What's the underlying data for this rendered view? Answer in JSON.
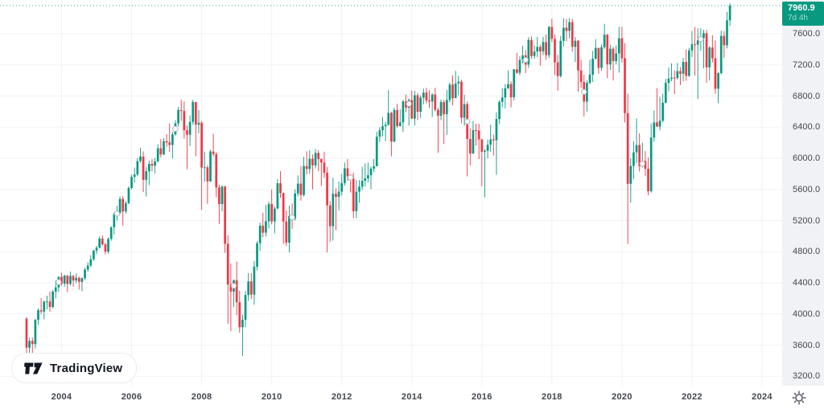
{
  "badge": {
    "last_price_label": "7960.9",
    "countdown": "7d 4h"
  },
  "logo": {
    "text": "TradingView"
  },
  "colors": {
    "up": "#089981",
    "down": "#F23645",
    "badge_bg": "#089981",
    "grid": "#EFF2F6",
    "axis_text": "#42464D",
    "scale_bg": "#F0F2F5",
    "marker_stroke": "#B2B5BE",
    "price_line": "#089981"
  },
  "chart_data": {
    "type": "candlestick",
    "interval": "monthly",
    "start_month": "2003-01",
    "last_price": 7960.9,
    "grid": true,
    "y_axis": {
      "side": "right",
      "tick_values": [
        7600,
        7200,
        6800,
        6400,
        6000,
        5600,
        5200,
        4800,
        4400,
        4000,
        3600,
        3200
      ],
      "tick_labels": [
        "7600.0",
        "7200.0",
        "6800.0",
        "6400.0",
        "6000.0",
        "5600.0",
        "5200.0",
        "4800.0",
        "4400.0",
        "4000.0",
        "3600.0",
        "3200.0"
      ],
      "range": [
        3100,
        8030
      ]
    },
    "x_axis": {
      "tick_years": [
        2004,
        2006,
        2008,
        2010,
        2012,
        2014,
        2016,
        2018,
        2020,
        2022,
        2024
      ],
      "tick_labels": [
        "2004",
        "2006",
        "2008",
        "2010",
        "2012",
        "2014",
        "2016",
        "2018",
        "2020",
        "2022",
        "2024"
      ]
    },
    "event_marker_months": [
      11,
      31,
      51,
      71,
      91,
      111,
      131,
      151,
      171,
      191,
      211,
      231
    ],
    "candles": [
      [
        3940,
        3960,
        3480,
        3567
      ],
      [
        3567,
        3695,
        3436,
        3655
      ],
      [
        3655,
        3698,
        3277,
        3613
      ],
      [
        3613,
        3935,
        3558,
        3926
      ],
      [
        3926,
        4075,
        3860,
        4048
      ],
      [
        4048,
        4205,
        3995,
        4031
      ],
      [
        4031,
        4175,
        3932,
        4157
      ],
      [
        4157,
        4235,
        4060,
        4161
      ],
      [
        4161,
        4290,
        4030,
        4091
      ],
      [
        4091,
        4310,
        4072,
        4287
      ],
      [
        4287,
        4430,
        4200,
        4342
      ],
      [
        4342,
        4480,
        4283,
        4477
      ],
      [
        4477,
        4530,
        4360,
        4390
      ],
      [
        4390,
        4505,
        4350,
        4492
      ],
      [
        4492,
        4500,
        4280,
        4386
      ],
      [
        4386,
        4545,
        4365,
        4489
      ],
      [
        4489,
        4500,
        4350,
        4430
      ],
      [
        4430,
        4520,
        4395,
        4464
      ],
      [
        4464,
        4480,
        4315,
        4413
      ],
      [
        4413,
        4475,
        4290,
        4459
      ],
      [
        4459,
        4595,
        4435,
        4571
      ],
      [
        4571,
        4665,
        4540,
        4624
      ],
      [
        4624,
        4755,
        4600,
        4703
      ],
      [
        4703,
        4825,
        4680,
        4814
      ],
      [
        4814,
        4875,
        4770,
        4852
      ],
      [
        4852,
        5000,
        4840,
        4969
      ],
      [
        4969,
        5010,
        4880,
        4894
      ],
      [
        4894,
        4915,
        4765,
        4801
      ],
      [
        4801,
        4985,
        4775,
        4964
      ],
      [
        4964,
        5130,
        4940,
        5113
      ],
      [
        5113,
        5305,
        5020,
        5282
      ],
      [
        5282,
        5390,
        5200,
        5297
      ],
      [
        5297,
        5510,
        5285,
        5478
      ],
      [
        5478,
        5515,
        5135,
        5317
      ],
      [
        5317,
        5450,
        5290,
        5423
      ],
      [
        5423,
        5640,
        5410,
        5619
      ],
      [
        5619,
        5790,
        5600,
        5760
      ],
      [
        5760,
        5880,
        5690,
        5792
      ],
      [
        5792,
        6000,
        5770,
        5965
      ],
      [
        5965,
        6135,
        5940,
        6023
      ],
      [
        6023,
        6090,
        5565,
        5723
      ],
      [
        5723,
        5890,
        5510,
        5833
      ],
      [
        5833,
        5970,
        5655,
        5928
      ],
      [
        5928,
        5990,
        5830,
        5906
      ],
      [
        5906,
        6005,
        5805,
        5961
      ],
      [
        5961,
        6180,
        5945,
        6129
      ],
      [
        6129,
        6245,
        6010,
        6049
      ],
      [
        6049,
        6260,
        6040,
        6221
      ],
      [
        6221,
        6310,
        6150,
        6204
      ],
      [
        6204,
        6450,
        6085,
        6171
      ],
      [
        6171,
        6340,
        6000,
        6308
      ],
      [
        6308,
        6490,
        6290,
        6449
      ],
      [
        6449,
        6660,
        6410,
        6621
      ],
      [
        6621,
        6754,
        6480,
        6608
      ],
      [
        6608,
        6730,
        6250,
        6360
      ],
      [
        6360,
        6420,
        5860,
        6303
      ],
      [
        6303,
        6550,
        6160,
        6467
      ],
      [
        6467,
        6751,
        6430,
        6722
      ],
      [
        6722,
        6725,
        6025,
        6432
      ],
      [
        6432,
        6620,
        6320,
        6457
      ],
      [
        6457,
        6480,
        5338,
        5880
      ],
      [
        5880,
        6085,
        5700,
        5884
      ],
      [
        5884,
        5910,
        5415,
        5702
      ],
      [
        5702,
        6110,
        5700,
        6087
      ],
      [
        6087,
        6315,
        6025,
        6054
      ],
      [
        6054,
        6080,
        5500,
        5626
      ],
      [
        5626,
        5660,
        5155,
        5412
      ],
      [
        5412,
        5650,
        5320,
        5637
      ],
      [
        5637,
        5645,
        4785,
        4902
      ],
      [
        4902,
        5010,
        3874,
        4377
      ],
      [
        4377,
        4650,
        3781,
        4288
      ],
      [
        4288,
        4445,
        4090,
        4434
      ],
      [
        4434,
        4675,
        3985,
        4150
      ],
      [
        4150,
        4300,
        3760,
        3830
      ],
      [
        3830,
        3990,
        3460,
        3926
      ],
      [
        3926,
        4295,
        3830,
        4244
      ],
      [
        4244,
        4525,
        4170,
        4418
      ],
      [
        4418,
        4525,
        4190,
        4249
      ],
      [
        4249,
        4680,
        4120,
        4608
      ],
      [
        4608,
        4935,
        4560,
        4909
      ],
      [
        4909,
        5175,
        4810,
        5134
      ],
      [
        5134,
        5300,
        4985,
        5044
      ],
      [
        5044,
        5400,
        4995,
        5191
      ],
      [
        5191,
        5445,
        5100,
        5413
      ],
      [
        5413,
        5600,
        5150,
        5189
      ],
      [
        5189,
        5380,
        5035,
        5354
      ],
      [
        5354,
        5735,
        5345,
        5680
      ],
      [
        5680,
        5835,
        5490,
        5553
      ],
      [
        5553,
        5560,
        4898,
        5188
      ],
      [
        5188,
        5330,
        4870,
        4917
      ],
      [
        4917,
        5390,
        4790,
        5258
      ],
      [
        5258,
        5420,
        5090,
        5225
      ],
      [
        5225,
        5600,
        5200,
        5549
      ],
      [
        5549,
        5780,
        5510,
        5675
      ],
      [
        5675,
        5900,
        5455,
        5528
      ],
      [
        5528,
        6020,
        5510,
        5900
      ],
      [
        5900,
        6090,
        5790,
        5863
      ],
      [
        5863,
        6105,
        5800,
        5994
      ],
      [
        5994,
        6050,
        5600,
        5909
      ],
      [
        5909,
        6120,
        5870,
        6070
      ],
      [
        6070,
        6105,
        5835,
        5990
      ],
      [
        5990,
        5995,
        5645,
        5946
      ],
      [
        5946,
        6085,
        5750,
        5815
      ],
      [
        5815,
        5890,
        4791,
        5395
      ],
      [
        5395,
        5450,
        4928,
        5128
      ],
      [
        5128,
        5750,
        4944,
        5544
      ],
      [
        5544,
        5615,
        5075,
        5505
      ],
      [
        5505,
        5700,
        5330,
        5572
      ],
      [
        5572,
        5800,
        5520,
        5682
      ],
      [
        5682,
        5945,
        5650,
        5871
      ],
      [
        5871,
        5990,
        5710,
        5768
      ],
      [
        5768,
        5800,
        5560,
        5738
      ],
      [
        5738,
        5815,
        5230,
        5321
      ],
      [
        5321,
        5720,
        5230,
        5571
      ],
      [
        5571,
        5720,
        5430,
        5635
      ],
      [
        5635,
        5890,
        5590,
        5711
      ],
      [
        5711,
        5935,
        5640,
        5742
      ],
      [
        5742,
        5945,
        5690,
        5783
      ],
      [
        5783,
        5895,
        5605,
        5867
      ],
      [
        5867,
        5990,
        5820,
        5898
      ],
      [
        5898,
        6340,
        5898,
        6277
      ],
      [
        6277,
        6400,
        6210,
        6361
      ],
      [
        6361,
        6530,
        6280,
        6412
      ],
      [
        6412,
        6470,
        6220,
        6430
      ],
      [
        6430,
        6876,
        6420,
        6583
      ],
      [
        6583,
        6600,
        6025,
        6215
      ],
      [
        6215,
        6650,
        6205,
        6621
      ],
      [
        6621,
        6700,
        6390,
        6413
      ],
      [
        6413,
        6630,
        6410,
        6462
      ],
      [
        6462,
        6750,
        6340,
        6731
      ],
      [
        6731,
        6820,
        6590,
        6651
      ],
      [
        6651,
        6770,
        6420,
        6749
      ],
      [
        6749,
        6870,
        6505,
        6510
      ],
      [
        6510,
        6865,
        6420,
        6810
      ],
      [
        6810,
        6840,
        6490,
        6598
      ],
      [
        6598,
        6810,
        6520,
        6780
      ],
      [
        6780,
        6895,
        6690,
        6844
      ],
      [
        6844,
        6905,
        6705,
        6744
      ],
      [
        6744,
        6875,
        6645,
        6730
      ],
      [
        6730,
        6835,
        6530,
        6820
      ],
      [
        6820,
        6905,
        6600,
        6623
      ],
      [
        6623,
        6650,
        6072,
        6546
      ],
      [
        6546,
        6755,
        6490,
        6723
      ],
      [
        6723,
        6750,
        6183,
        6566
      ],
      [
        6566,
        6880,
        6300,
        6749
      ],
      [
        6749,
        6975,
        6715,
        6947
      ],
      [
        6947,
        7065,
        6680,
        6773
      ],
      [
        6773,
        7122,
        6770,
        6961
      ],
      [
        6961,
        7060,
        6810,
        6984
      ],
      [
        6984,
        7010,
        6450,
        6521
      ],
      [
        6521,
        6815,
        6420,
        6696
      ],
      [
        6696,
        6730,
        5768,
        6248
      ],
      [
        6248,
        6380,
        5910,
        6062
      ],
      [
        6062,
        6480,
        6055,
        6361
      ],
      [
        6361,
        6445,
        6160,
        6356
      ],
      [
        6356,
        6445,
        5990,
        6242
      ],
      [
        6242,
        6250,
        5640,
        6084
      ],
      [
        6084,
        6120,
        5500,
        6097
      ],
      [
        6097,
        6240,
        6000,
        6175
      ],
      [
        6175,
        6430,
        6085,
        6242
      ],
      [
        6242,
        6305,
        6035,
        6231
      ],
      [
        6231,
        6590,
        5788,
        6504
      ],
      [
        6504,
        6745,
        6440,
        6724
      ],
      [
        6724,
        6900,
        6655,
        6782
      ],
      [
        6782,
        6955,
        6640,
        6899
      ],
      [
        6899,
        7130,
        6890,
        6954
      ],
      [
        6954,
        6990,
        6655,
        6784
      ],
      [
        6784,
        7150,
        6745,
        7143
      ],
      [
        7143,
        7355,
        7085,
        7099
      ],
      [
        7099,
        7310,
        7070,
        7263
      ],
      [
        7263,
        7445,
        7215,
        7323
      ],
      [
        7323,
        7390,
        7095,
        7204
      ],
      [
        7204,
        7555,
        7160,
        7520
      ],
      [
        7520,
        7565,
        7280,
        7313
      ],
      [
        7313,
        7450,
        7280,
        7372
      ],
      [
        7372,
        7560,
        7300,
        7431
      ],
      [
        7431,
        7460,
        7190,
        7373
      ],
      [
        7373,
        7560,
        7325,
        7493
      ],
      [
        7493,
        7590,
        7265,
        7327
      ],
      [
        7327,
        7700,
        7290,
        7688
      ],
      [
        7688,
        7793,
        7490,
        7534
      ],
      [
        7534,
        7590,
        7070,
        7232
      ],
      [
        7232,
        7330,
        6867,
        7057
      ],
      [
        7057,
        7570,
        7035,
        7509
      ],
      [
        7509,
        7800,
        7440,
        7678
      ],
      [
        7678,
        7790,
        7505,
        7637
      ],
      [
        7637,
        7800,
        7540,
        7749
      ],
      [
        7749,
        7790,
        7370,
        7432
      ],
      [
        7432,
        7560,
        7235,
        7510
      ],
      [
        7510,
        7520,
        6852,
        7128
      ],
      [
        7128,
        7265,
        6905,
        6980
      ],
      [
        6980,
        7075,
        6537,
        6728
      ],
      [
        6728,
        7000,
        6600,
        6969
      ],
      [
        6969,
        7265,
        6950,
        7075
      ],
      [
        7075,
        7380,
        6980,
        7279
      ],
      [
        7279,
        7530,
        7270,
        7418
      ],
      [
        7418,
        7420,
        7085,
        7162
      ],
      [
        7162,
        7460,
        7125,
        7426
      ],
      [
        7426,
        7727,
        7405,
        7587
      ],
      [
        7587,
        7600,
        7030,
        7207
      ],
      [
        7207,
        7460,
        7135,
        7408
      ],
      [
        7408,
        7430,
        7000,
        7248
      ],
      [
        7248,
        7450,
        7205,
        7347
      ],
      [
        7347,
        7690,
        7100,
        7542
      ],
      [
        7542,
        7689,
        7230,
        7286
      ],
      [
        7286,
        7480,
        6460,
        6580
      ],
      [
        6580,
        6830,
        4899,
        5672
      ],
      [
        5672,
        6000,
        5430,
        5901
      ],
      [
        5901,
        6220,
        5730,
        6077
      ],
      [
        6077,
        6512,
        5940,
        6170
      ],
      [
        6170,
        6320,
        5830,
        5898
      ],
      [
        5898,
        6200,
        5880,
        5964
      ],
      [
        5964,
        6090,
        5770,
        5866
      ],
      [
        5866,
        6010,
        5525,
        5577
      ],
      [
        5577,
        6445,
        5560,
        6266
      ],
      [
        6266,
        6615,
        6210,
        6461
      ],
      [
        6461,
        6903,
        6405,
        6407
      ],
      [
        6407,
        6790,
        6360,
        6483
      ],
      [
        6483,
        6830,
        6460,
        6714
      ],
      [
        6714,
        7020,
        6705,
        6970
      ],
      [
        6970,
        7165,
        6860,
        7023
      ],
      [
        7023,
        7220,
        6990,
        7037
      ],
      [
        7037,
        7130,
        6825,
        7032
      ],
      [
        7032,
        7225,
        7010,
        7120
      ],
      [
        7120,
        7170,
        6940,
        7086
      ],
      [
        7086,
        7290,
        6990,
        7238
      ],
      [
        7238,
        7400,
        6995,
        7059
      ],
      [
        7059,
        7420,
        7045,
        7385
      ],
      [
        7385,
        7635,
        7300,
        7464
      ],
      [
        7464,
        7687,
        7060,
        7458
      ],
      [
        7458,
        7670,
        6760,
        7516
      ],
      [
        7516,
        7670,
        7380,
        7545
      ],
      [
        7545,
        7650,
        7155,
        7608
      ],
      [
        7608,
        7650,
        6970,
        7169
      ],
      [
        7169,
        7440,
        7000,
        7423
      ],
      [
        7423,
        7580,
        7230,
        7284
      ],
      [
        7284,
        7515,
        6830,
        6894
      ],
      [
        6894,
        7105,
        6708,
        7095
      ],
      [
        7095,
        7640,
        7075,
        7573
      ],
      [
        7573,
        7635,
        7290,
        7452
      ],
      [
        7452,
        7880,
        7410,
        7772
      ],
      [
        7772,
        7990,
        7700,
        7960.9
      ]
    ]
  }
}
